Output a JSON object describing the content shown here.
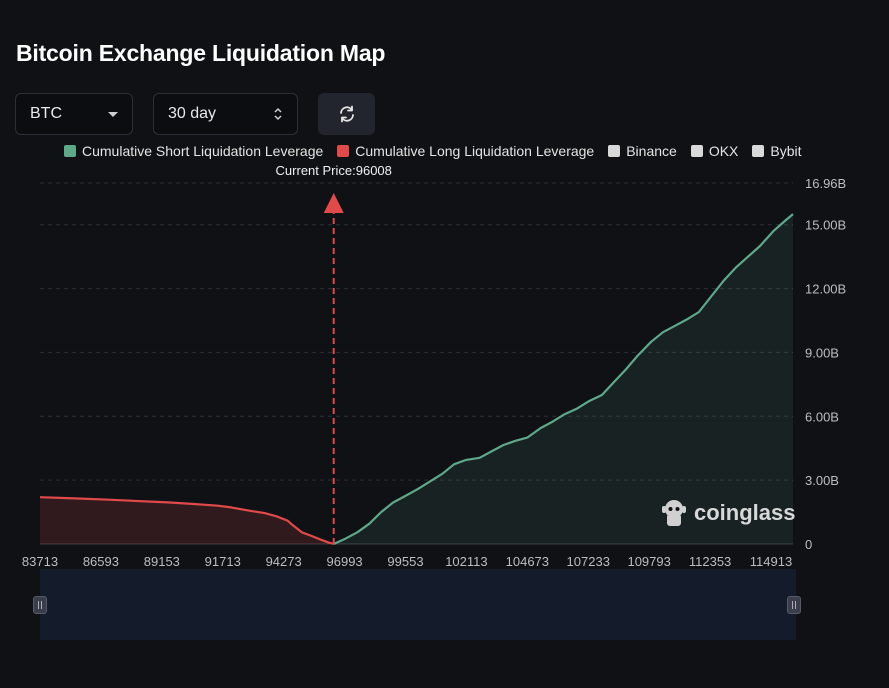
{
  "title": "Bitcoin Exchange Liquidation Map",
  "controls": {
    "symbol": "BTC",
    "period": "30 day"
  },
  "legend": [
    {
      "label": "Cumulative Short Liquidation Leverage",
      "color": "#5fa88a"
    },
    {
      "label": "Cumulative Long Liquidation Leverage",
      "color": "#e04a4a"
    },
    {
      "label": "Binance",
      "color": "#d9d9d9"
    },
    {
      "label": "OKX",
      "color": "#d9d9d9"
    },
    {
      "label": "Bybit",
      "color": "#d9d9d9"
    }
  ],
  "watermark": "coinglass",
  "chart_data": {
    "type": "area",
    "current_price_label": "Current Price:96008",
    "current_price": 96008,
    "x_range": [
      83713,
      115233
    ],
    "x_ticks": [
      "83713",
      "86593",
      "89153",
      "91713",
      "94273",
      "96993",
      "99553",
      "102113",
      "104673",
      "107233",
      "109793",
      "112353",
      "114913"
    ],
    "y_ticks": [
      "0",
      "3.00B",
      "6.00B",
      "9.00B",
      "12.00B",
      "15.00B",
      "16.96B"
    ],
    "ylim": [
      0,
      16.96
    ],
    "grid": true,
    "series": [
      {
        "name": "Cumulative Long Liquidation Leverage",
        "color": "#e04a4a",
        "x": [
          83713,
          84713,
          85713,
          86593,
          87593,
          88593,
          89153,
          90153,
          91153,
          91713,
          92413,
          93113,
          93613,
          94073,
          94273,
          94673,
          95073,
          95473,
          95773,
          96008
        ],
        "y": [
          2.2,
          2.16,
          2.12,
          2.08,
          2.03,
          1.98,
          1.95,
          1.88,
          1.8,
          1.72,
          1.58,
          1.45,
          1.3,
          1.1,
          0.9,
          0.55,
          0.38,
          0.2,
          0.08,
          0.0
        ]
      },
      {
        "name": "Cumulative Short Liquidation Leverage",
        "color": "#5fa88a",
        "x": [
          96008,
          96493,
          96993,
          97493,
          97993,
          98493,
          98993,
          99553,
          100053,
          100553,
          101053,
          101553,
          102113,
          102613,
          103113,
          103613,
          104113,
          104673,
          105173,
          105673,
          106173,
          106673,
          107233,
          107733,
          108233,
          108733,
          109293,
          109793,
          110293,
          110793,
          111293,
          111853,
          112353,
          112853,
          113353,
          113853,
          114413,
          114913,
          115233
        ],
        "y": [
          0.0,
          0.25,
          0.55,
          0.95,
          1.5,
          1.95,
          2.25,
          2.6,
          2.95,
          3.3,
          3.75,
          3.95,
          4.05,
          4.35,
          4.65,
          4.85,
          5.0,
          5.45,
          5.75,
          6.1,
          6.35,
          6.7,
          7.0,
          7.6,
          8.2,
          8.85,
          9.5,
          9.95,
          10.25,
          10.55,
          10.9,
          11.7,
          12.4,
          13.0,
          13.5,
          14.0,
          14.7,
          15.2,
          15.5
        ]
      }
    ]
  }
}
